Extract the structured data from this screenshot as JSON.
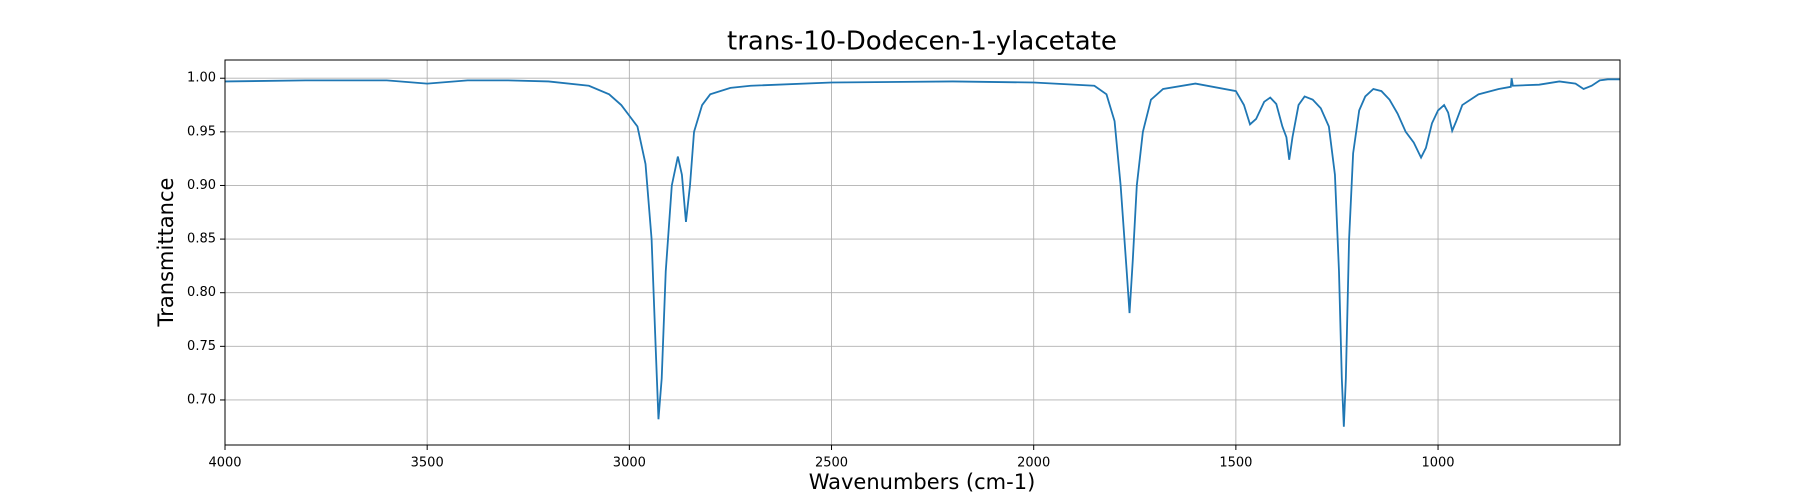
{
  "chart_data": {
    "type": "line",
    "title": "trans-10-Dodecen-1-ylacetate",
    "x_label": "Wavenumbers (cm-1)",
    "y_label": "Transmittance",
    "x": [
      4000,
      3800,
      3600,
      3500,
      3400,
      3300,
      3200,
      3100,
      3050,
      3020,
      3000,
      2980,
      2960,
      2945,
      2935,
      2928,
      2920,
      2910,
      2895,
      2880,
      2870,
      2860,
      2850,
      2840,
      2820,
      2800,
      2750,
      2700,
      2500,
      2200,
      2000,
      1850,
      1820,
      1800,
      1785,
      1770,
      1763,
      1755,
      1745,
      1730,
      1710,
      1680,
      1600,
      1500,
      1480,
      1465,
      1450,
      1430,
      1415,
      1400,
      1385,
      1375,
      1368,
      1360,
      1345,
      1330,
      1310,
      1290,
      1270,
      1255,
      1245,
      1238,
      1233,
      1228,
      1220,
      1210,
      1195,
      1180,
      1160,
      1140,
      1120,
      1100,
      1080,
      1060,
      1042,
      1030,
      1015,
      1000,
      985,
      975,
      965,
      955,
      940,
      900,
      850,
      820,
      818,
      815,
      750,
      700,
      660,
      640,
      620,
      600,
      580,
      550
    ],
    "series": [
      {
        "name": "Transmittance",
        "color": "#1f77b4",
        "values": [
          0.997,
          0.998,
          0.998,
          0.995,
          0.998,
          0.998,
          0.997,
          0.993,
          0.985,
          0.975,
          0.965,
          0.955,
          0.92,
          0.85,
          0.75,
          0.682,
          0.72,
          0.82,
          0.9,
          0.927,
          0.91,
          0.866,
          0.9,
          0.95,
          0.975,
          0.985,
          0.991,
          0.993,
          0.996,
          0.997,
          0.996,
          0.993,
          0.985,
          0.96,
          0.9,
          0.82,
          0.781,
          0.83,
          0.9,
          0.95,
          0.98,
          0.99,
          0.995,
          0.988,
          0.975,
          0.957,
          0.962,
          0.978,
          0.982,
          0.976,
          0.955,
          0.945,
          0.924,
          0.945,
          0.975,
          0.983,
          0.98,
          0.972,
          0.955,
          0.91,
          0.82,
          0.72,
          0.675,
          0.72,
          0.85,
          0.93,
          0.97,
          0.983,
          0.99,
          0.988,
          0.98,
          0.967,
          0.95,
          0.94,
          0.926,
          0.935,
          0.958,
          0.97,
          0.975,
          0.968,
          0.951,
          0.96,
          0.975,
          0.985,
          0.99,
          0.992,
          1.0,
          0.993,
          0.994,
          0.997,
          0.995,
          0.99,
          0.993,
          0.998,
          0.999,
          0.999
        ]
      }
    ],
    "xlim": [
      4000,
      550
    ],
    "ylim": [
      0.658,
      1.017
    ],
    "xticks": [
      4000,
      3500,
      3000,
      2500,
      2000,
      1500,
      1000
    ],
    "yticks": [
      {
        "value": 0.7,
        "label": "0.70"
      },
      0.75,
      {
        "value": 0.8,
        "label": "0.80"
      },
      0.85,
      {
        "value": 0.9,
        "label": "0.90"
      },
      0.95,
      {
        "value": 1,
        "label": "1.00"
      }
    ],
    "grid": true
  }
}
